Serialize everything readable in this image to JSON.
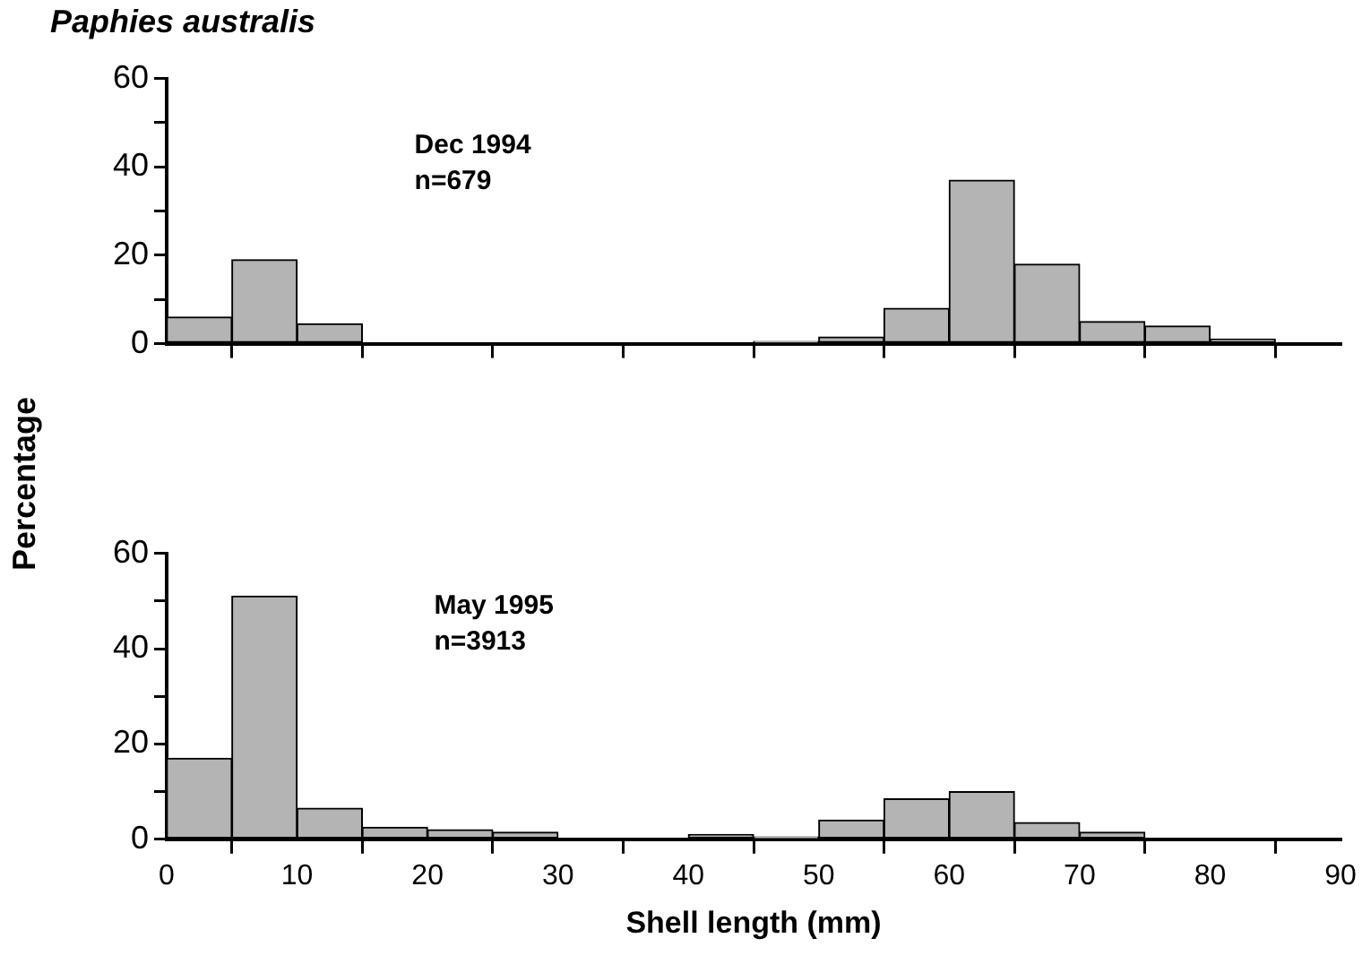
{
  "chart_data": [
    {
      "type": "histogram",
      "title": "Paphies australis",
      "ylabel": "Percentage",
      "annotations": [
        "Dec 1994",
        "n=679"
      ],
      "bins": [
        0,
        5,
        10,
        15,
        20,
        25,
        30,
        35,
        40,
        45,
        50,
        55,
        60,
        65,
        70,
        75,
        80,
        85,
        90
      ],
      "values": [
        6,
        19,
        4.5,
        0,
        0,
        0,
        0,
        0,
        0,
        0.5,
        1.5,
        8,
        37,
        18,
        5,
        4,
        1,
        0
      ],
      "color": "#b4b4b4",
      "xlim": [
        0,
        90
      ],
      "xticks": [
        {
          "value": 0,
          "label": null
        },
        {
          "value": 10,
          "label": null
        },
        {
          "value": 20,
          "label": null
        },
        {
          "value": 30,
          "label": null
        },
        {
          "value": 40,
          "label": null
        },
        {
          "value": 50,
          "label": null
        },
        {
          "value": 60,
          "label": null
        },
        {
          "value": 70,
          "label": null
        },
        {
          "value": 80,
          "label": null
        },
        {
          "value": 90,
          "label": null
        }
      ],
      "ylim": [
        0,
        60
      ],
      "yticks": [
        0,
        {
          "value": 10,
          "label": null
        },
        20,
        {
          "value": 30,
          "label": null
        },
        40,
        {
          "value": 50,
          "label": null
        },
        60
      ],
      "tick_labels": "y",
      "grid": false,
      "legend": false
    },
    {
      "type": "histogram",
      "xlabel": "Shell length (mm)",
      "annotations": [
        "May 1995",
        "n=3913"
      ],
      "bins": [
        0,
        5,
        10,
        15,
        20,
        25,
        30,
        35,
        40,
        45,
        50,
        55,
        60,
        65,
        70,
        75,
        80,
        85,
        90
      ],
      "values": [
        17,
        51,
        6.5,
        2.5,
        2,
        1.5,
        0,
        0,
        1,
        0.5,
        4,
        8.5,
        10,
        3.5,
        1.5,
        0,
        0,
        0
      ],
      "color": "#b4b4b4",
      "xlim": [
        0,
        90
      ],
      "xticks": [
        0,
        10,
        20,
        30,
        40,
        50,
        60,
        70,
        80,
        90
      ],
      "ylim": [
        0,
        60
      ],
      "yticks": [
        0,
        {
          "value": 10,
          "label": null
        },
        20,
        {
          "value": 30,
          "label": null
        },
        40,
        {
          "value": 50,
          "label": null
        },
        60
      ],
      "grid": false,
      "legend": false
    }
  ]
}
